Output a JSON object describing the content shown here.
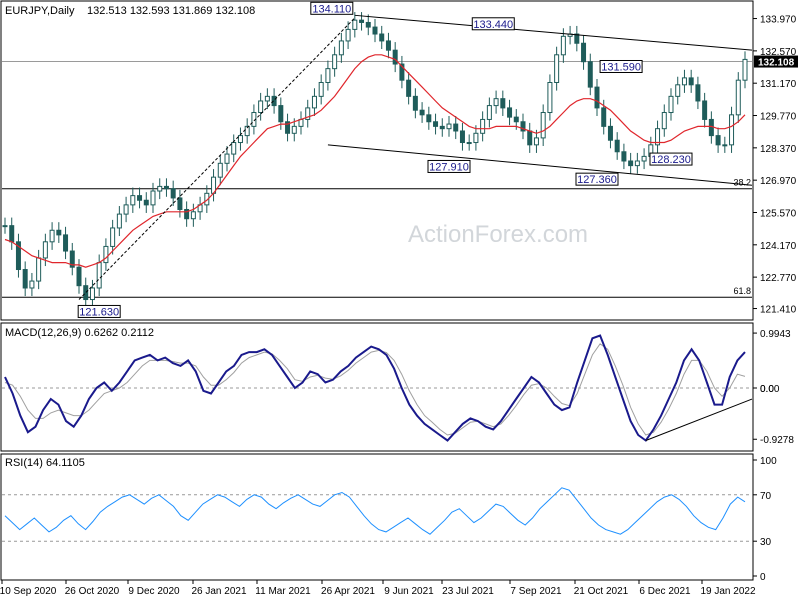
{
  "header": {
    "symbol": "EURJPY,Daily",
    "ohlc": "132.513 132.593 131.869 132.108"
  },
  "watermark": "ActionForex.com",
  "colors": {
    "candles": "#1f5c5a",
    "ma": "#e0262c",
    "macd": "#1a1a8c",
    "signal": "#a0a0a0",
    "rsi": "#1e90ff",
    "trend": "#000000",
    "hline": "#000000",
    "price_badge": "#000000"
  },
  "chart_data": [
    {
      "type": "candlestick",
      "title": "EURJPY,Daily",
      "ylim": [
        121.0,
        134.6
      ],
      "y_ticks": [
        "133.970",
        "132.570",
        "131.170",
        "129.770",
        "128.370",
        "126.970",
        "125.570",
        "124.170",
        "122.770",
        "121.410"
      ],
      "y_tick_values": [
        133.97,
        132.57,
        131.17,
        129.77,
        128.37,
        126.97,
        125.57,
        124.17,
        122.77,
        121.41
      ],
      "current_price": "132.108",
      "current_price_value": 132.108,
      "x_labels": [
        "10 Sep 2020",
        "26 Oct 2020",
        "9 Dec 2020",
        "26 Jan 2021",
        "11 Mar 2021",
        "26 Apr 2021",
        "9 Jun 2021",
        "23 Jul 2021",
        "7 Sep 2021",
        "21 Oct 2021",
        "6 Dec 2021",
        "19 Jan 2022"
      ],
      "closes": [
        125.0,
        124.3,
        123.1,
        122.3,
        122.6,
        123.6,
        124.3,
        124.8,
        124.6,
        123.9,
        123.2,
        122.4,
        121.8,
        122.3,
        123.4,
        124.1,
        124.9,
        125.5,
        125.9,
        126.3,
        126.1,
        125.9,
        126.5,
        126.7,
        126.6,
        126.2,
        125.7,
        125.3,
        125.6,
        125.9,
        126.4,
        127.1,
        127.7,
        128.1,
        128.6,
        128.9,
        129.3,
        129.9,
        130.4,
        130.6,
        130.2,
        129.5,
        129.0,
        129.3,
        129.6,
        130.1,
        130.6,
        131.2,
        131.8,
        132.4,
        133.0,
        133.5,
        133.9,
        133.8,
        133.6,
        133.3,
        133.0,
        132.6,
        132.0,
        131.3,
        130.6,
        130.0,
        129.8,
        129.5,
        129.3,
        129.2,
        129.4,
        129.1,
        128.6,
        128.6,
        129.0,
        129.6,
        130.2,
        130.5,
        130.1,
        129.7,
        129.5,
        129.1,
        128.5,
        128.8,
        129.9,
        131.2,
        132.4,
        133.2,
        133.3,
        132.9,
        132.1,
        131.0,
        130.1,
        129.3,
        128.7,
        128.2,
        127.8,
        127.6,
        127.8,
        128.0,
        128.5,
        129.2,
        129.9,
        130.6,
        131.1,
        131.4,
        131.1,
        130.4,
        129.6,
        128.9,
        128.5,
        128.5,
        129.8,
        131.3,
        132.2
      ],
      "moving_average": [
        124.4,
        124.3,
        124.1,
        123.9,
        123.7,
        123.6,
        123.5,
        123.4,
        123.4,
        123.4,
        123.3,
        123.3,
        123.2,
        123.3,
        123.4,
        123.6,
        123.9,
        124.2,
        124.5,
        124.8,
        125.0,
        125.2,
        125.4,
        125.5,
        125.6,
        125.6,
        125.6,
        125.6,
        125.7,
        125.9,
        126.1,
        126.4,
        126.8,
        127.2,
        127.6,
        128.0,
        128.3,
        128.6,
        128.9,
        129.2,
        129.3,
        129.4,
        129.4,
        129.5,
        129.6,
        129.7,
        129.8,
        130.0,
        130.3,
        130.6,
        131.0,
        131.4,
        131.8,
        132.1,
        132.3,
        132.4,
        132.4,
        132.3,
        132.2,
        131.9,
        131.6,
        131.3,
        131.0,
        130.7,
        130.4,
        130.1,
        129.9,
        129.7,
        129.5,
        129.3,
        129.2,
        129.2,
        129.2,
        129.3,
        129.3,
        129.3,
        129.3,
        129.2,
        129.1,
        129.0,
        129.1,
        129.3,
        129.6,
        129.9,
        130.2,
        130.4,
        130.5,
        130.5,
        130.4,
        130.2,
        130.0,
        129.7,
        129.4,
        129.1,
        128.9,
        128.7,
        128.6,
        128.6,
        128.6,
        128.7,
        128.9,
        129.1,
        129.2,
        129.3,
        129.3,
        129.3,
        129.2,
        129.2,
        129.3,
        129.5,
        129.8
      ],
      "annotations": [
        {
          "label": "134.110",
          "value": 134.11
        },
        {
          "label": "133.440",
          "value": 133.44
        },
        {
          "label": "131.590",
          "value": 131.59
        },
        {
          "label": "127.910",
          "value": 127.91
        },
        {
          "label": "127.360",
          "value": 127.36
        },
        {
          "label": "128.230",
          "value": 128.23
        },
        {
          "label": "121.630",
          "value": 121.63
        }
      ],
      "fib_levels": [
        {
          "label": "38.2",
          "value": 126.6
        },
        {
          "label": "61.8",
          "value": 121.9
        }
      ],
      "grid": false
    },
    {
      "type": "line",
      "title": "MACD(12,26,9) 0.6262 0.2112",
      "ylim": [
        -1.05,
        1.05
      ],
      "y_ticks": [
        "0.9943",
        "0.00",
        "0.0",
        "-0.9278"
      ],
      "y_tick_values": [
        0.9943,
        0.0,
        0.0,
        -0.9278
      ],
      "series": [
        {
          "values": [
            0.2,
            -0.1,
            -0.5,
            -0.8,
            -0.7,
            -0.4,
            -0.2,
            -0.3,
            -0.6,
            -0.7,
            -0.5,
            -0.2,
            0.0,
            0.1,
            -0.05,
            0.1,
            0.3,
            0.5,
            0.55,
            0.6,
            0.5,
            0.55,
            0.45,
            0.4,
            0.5,
            0.3,
            -0.05,
            -0.1,
            0.1,
            0.3,
            0.4,
            0.6,
            0.65,
            0.65,
            0.7,
            0.6,
            0.4,
            0.2,
            0.0,
            0.1,
            0.3,
            0.25,
            0.1,
            0.15,
            0.3,
            0.4,
            0.55,
            0.65,
            0.75,
            0.7,
            0.6,
            0.35,
            0.0,
            -0.3,
            -0.5,
            -0.65,
            -0.75,
            -0.85,
            -0.95,
            -0.8,
            -0.65,
            -0.55,
            -0.6,
            -0.7,
            -0.75,
            -0.6,
            -0.4,
            -0.2,
            0.0,
            0.2,
            0.1,
            -0.1,
            -0.3,
            -0.4,
            -0.35,
            0.1,
            0.5,
            0.9,
            0.95,
            0.6,
            0.2,
            -0.2,
            -0.6,
            -0.85,
            -0.95,
            -0.75,
            -0.5,
            -0.2,
            0.1,
            0.5,
            0.7,
            0.5,
            0.1,
            -0.3,
            -0.3,
            0.2,
            0.5,
            0.65
          ]
        },
        {
          "values": [
            0.1,
            0.05,
            -0.15,
            -0.4,
            -0.55,
            -0.55,
            -0.45,
            -0.4,
            -0.45,
            -0.5,
            -0.5,
            -0.4,
            -0.25,
            -0.1,
            -0.05,
            0.0,
            0.1,
            0.25,
            0.4,
            0.5,
            0.5,
            0.5,
            0.48,
            0.45,
            0.45,
            0.4,
            0.2,
            0.05,
            0.05,
            0.15,
            0.28,
            0.45,
            0.55,
            0.6,
            0.65,
            0.62,
            0.5,
            0.35,
            0.15,
            0.12,
            0.2,
            0.23,
            0.18,
            0.16,
            0.22,
            0.32,
            0.45,
            0.55,
            0.65,
            0.68,
            0.64,
            0.5,
            0.25,
            -0.05,
            -0.3,
            -0.5,
            -0.62,
            -0.75,
            -0.85,
            -0.82,
            -0.72,
            -0.62,
            -0.6,
            -0.65,
            -0.7,
            -0.65,
            -0.5,
            -0.32,
            -0.12,
            0.05,
            0.08,
            0.0,
            -0.15,
            -0.28,
            -0.32,
            -0.1,
            0.25,
            0.6,
            0.8,
            0.7,
            0.4,
            0.05,
            -0.35,
            -0.65,
            -0.85,
            -0.8,
            -0.62,
            -0.38,
            -0.1,
            0.25,
            0.5,
            0.5,
            0.3,
            0.0,
            -0.15,
            0.0,
            0.25,
            0.21
          ]
        }
      ]
    },
    {
      "type": "line",
      "title": "RSI(14) 64.1105",
      "ylim": [
        0,
        100
      ],
      "y_ticks": [
        "100",
        "70",
        "30",
        "0"
      ],
      "y_tick_values": [
        100,
        70,
        30,
        0
      ],
      "series": [
        {
          "values": [
            52,
            46,
            40,
            45,
            50,
            44,
            38,
            42,
            48,
            52,
            45,
            40,
            47,
            55,
            60,
            64,
            68,
            70,
            66,
            62,
            67,
            70,
            65,
            60,
            52,
            48,
            55,
            62,
            66,
            70,
            68,
            64,
            60,
            66,
            70,
            68,
            62,
            58,
            63,
            67,
            70,
            66,
            62,
            60,
            65,
            70,
            72,
            68,
            60,
            52,
            45,
            40,
            38,
            42,
            46,
            50,
            45,
            40,
            36,
            42,
            48,
            55,
            58,
            52,
            46,
            50,
            56,
            62,
            60,
            54,
            48,
            44,
            50,
            58,
            64,
            70,
            76,
            74,
            66,
            58,
            50,
            44,
            40,
            38,
            36,
            40,
            46,
            52,
            58,
            64,
            68,
            70,
            66,
            60,
            52,
            46,
            42,
            40,
            50,
            62,
            68,
            64
          ]
        }
      ]
    }
  ]
}
